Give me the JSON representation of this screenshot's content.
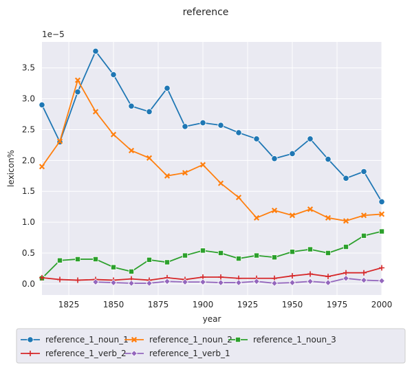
{
  "chart_data": {
    "type": "line",
    "title": "reference",
    "xlabel": "year",
    "ylabel": "lexicon%",
    "y_offset_label": "1e−5",
    "xlim": [
      1810,
      2000
    ],
    "ylim": [
      -0.18,
      3.92
    ],
    "x_ticks": [
      1825,
      1850,
      1875,
      1900,
      1925,
      1950,
      1975,
      2000
    ],
    "x_tick_labels": [
      "1825",
      "1850",
      "1875",
      "1900",
      "1925",
      "1950",
      "1975",
      "2000"
    ],
    "y_ticks": [
      0.0,
      0.5,
      1.0,
      1.5,
      2.0,
      2.5,
      3.0,
      3.5
    ],
    "y_tick_labels": [
      "0.0",
      "0.5",
      "1.0",
      "1.5",
      "2.0",
      "2.5",
      "3.0",
      "3.5"
    ],
    "grid": true,
    "legend_position": "bottom",
    "series": [
      {
        "name": "reference_1_noun_1",
        "color": "#1f77b4",
        "marker": "circle",
        "x": [
          1810,
          1820,
          1830,
          1840,
          1850,
          1860,
          1870,
          1880,
          1890,
          1900,
          1910,
          1920,
          1930,
          1940,
          1950,
          1960,
          1970,
          1980,
          1990,
          2000
        ],
        "y": [
          2.9,
          2.3,
          3.11,
          3.77,
          3.39,
          2.88,
          2.79,
          3.17,
          2.55,
          2.61,
          2.57,
          2.45,
          2.35,
          2.03,
          2.11,
          2.35,
          2.02,
          1.71,
          1.82,
          1.33
        ]
      },
      {
        "name": "reference_1_noun_2",
        "color": "#ff7f0e",
        "marker": "x",
        "x": [
          1810,
          1820,
          1830,
          1840,
          1850,
          1860,
          1870,
          1880,
          1890,
          1900,
          1910,
          1920,
          1930,
          1940,
          1950,
          1960,
          1970,
          1980,
          1990,
          2000
        ],
        "y": [
          1.9,
          2.31,
          3.3,
          2.79,
          2.42,
          2.16,
          2.04,
          1.75,
          1.8,
          1.93,
          1.63,
          1.4,
          1.07,
          1.19,
          1.11,
          1.21,
          1.07,
          1.02,
          1.11,
          1.13
        ]
      },
      {
        "name": "reference_1_noun_3",
        "color": "#2ca02c",
        "marker": "square",
        "x": [
          1810,
          1820,
          1830,
          1840,
          1850,
          1860,
          1870,
          1880,
          1890,
          1900,
          1910,
          1920,
          1930,
          1940,
          1950,
          1960,
          1970,
          1980,
          1990,
          2000
        ],
        "y": [
          0.09,
          0.38,
          0.4,
          0.4,
          0.27,
          0.2,
          0.39,
          0.35,
          0.46,
          0.54,
          0.5,
          0.41,
          0.46,
          0.43,
          0.52,
          0.56,
          0.5,
          0.6,
          0.78,
          0.85
        ]
      },
      {
        "name": "reference_1_verb_2",
        "color": "#d62728",
        "marker": "plus",
        "x": [
          1810,
          1820,
          1830,
          1840,
          1850,
          1860,
          1870,
          1880,
          1890,
          1900,
          1910,
          1920,
          1930,
          1940,
          1950,
          1960,
          1970,
          1980,
          1990,
          2000
        ],
        "y": [
          0.1,
          0.07,
          0.06,
          0.07,
          0.06,
          0.08,
          0.06,
          0.1,
          0.07,
          0.11,
          0.11,
          0.09,
          0.09,
          0.09,
          0.13,
          0.16,
          0.12,
          0.18,
          0.18,
          0.26
        ]
      },
      {
        "name": "reference_1_verb_1",
        "color": "#9467bd",
        "marker": "diamond",
        "x": [
          1840,
          1850,
          1860,
          1870,
          1880,
          1890,
          1900,
          1910,
          1920,
          1930,
          1940,
          1950,
          1960,
          1970,
          1980,
          1990,
          2000
        ],
        "y": [
          0.03,
          0.02,
          0.01,
          0.01,
          0.04,
          0.03,
          0.03,
          0.02,
          0.02,
          0.04,
          0.01,
          0.02,
          0.04,
          0.02,
          0.09,
          0.06,
          0.05
        ]
      }
    ]
  }
}
